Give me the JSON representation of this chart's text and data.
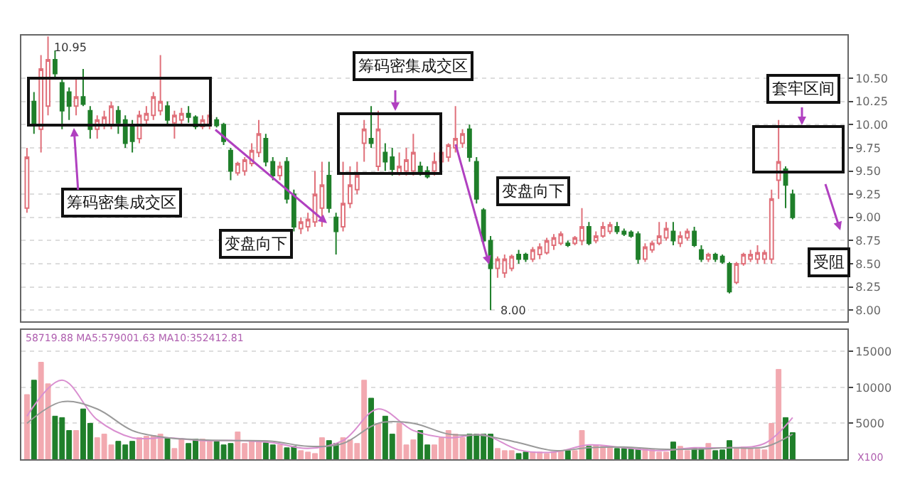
{
  "chart_data": [
    {
      "type": "candlestick",
      "categories": [
        null,
        null,
        null,
        null,
        null,
        null,
        null,
        null,
        null,
        null,
        null,
        null,
        null,
        null,
        null,
        null,
        null,
        null,
        null,
        null,
        null,
        null,
        null,
        null,
        null,
        null,
        null,
        null,
        null,
        null,
        null,
        null,
        null,
        null,
        null,
        null,
        null,
        null,
        null,
        null,
        null,
        null,
        null,
        null,
        null,
        null,
        null,
        null,
        null,
        null,
        null,
        null,
        null,
        null,
        null,
        null,
        null,
        null,
        null,
        null,
        null,
        null,
        null,
        null,
        null,
        null,
        null,
        null,
        null,
        null,
        null,
        null,
        null,
        null,
        null,
        null,
        null,
        null,
        null,
        null,
        null,
        null,
        null,
        null,
        null,
        null,
        null,
        null,
        null,
        null,
        null,
        null,
        null,
        null,
        null,
        null,
        null,
        null,
        null,
        null,
        null,
        null,
        null,
        null,
        null,
        null,
        null,
        null,
        null,
        null
      ],
      "ohlc": [
        [
          9.1,
          9.75,
          9.05,
          9.65
        ],
        [
          10.25,
          10.35,
          9.9,
          10.0
        ],
        [
          9.95,
          10.75,
          9.7,
          10.6
        ],
        [
          10.2,
          10.95,
          10.1,
          10.7
        ],
        [
          10.7,
          10.8,
          10.5,
          10.55
        ],
        [
          10.45,
          10.5,
          9.95,
          10.15
        ],
        [
          10.35,
          10.4,
          10.05,
          10.2
        ],
        [
          10.2,
          10.5,
          10.1,
          10.3
        ],
        [
          10.3,
          10.6,
          10.2,
          10.22
        ],
        [
          10.15,
          10.2,
          9.85,
          9.95
        ],
        [
          9.95,
          10.1,
          9.85,
          10.05
        ],
        [
          10.0,
          10.15,
          9.95,
          10.08
        ],
        [
          10.0,
          10.25,
          9.95,
          10.2
        ],
        [
          10.15,
          10.2,
          9.9,
          10.02
        ],
        [
          10.05,
          10.1,
          9.75,
          9.8
        ],
        [
          10.0,
          10.05,
          9.7,
          9.82
        ],
        [
          9.85,
          10.15,
          9.8,
          10.1
        ],
        [
          10.05,
          10.2,
          10.0,
          10.12
        ],
        [
          10.1,
          10.35,
          10.05,
          10.3
        ],
        [
          10.15,
          10.75,
          10.1,
          10.25
        ],
        [
          10.2,
          10.25,
          10.0,
          10.05
        ],
        [
          10.02,
          10.15,
          9.85,
          10.1
        ],
        [
          10.05,
          10.18,
          10.0,
          10.12
        ],
        [
          10.12,
          10.2,
          10.02,
          10.08
        ],
        [
          10.08,
          10.1,
          9.95,
          9.98
        ],
        [
          9.98,
          10.1,
          9.95,
          10.05
        ],
        [
          10.0,
          10.15,
          9.95,
          10.1
        ],
        [
          10.05,
          10.08,
          9.97,
          9.99
        ],
        [
          10.0,
          10.02,
          9.78,
          9.82
        ],
        [
          9.72,
          9.75,
          9.4,
          9.5
        ],
        [
          9.48,
          9.6,
          9.45,
          9.58
        ],
        [
          9.5,
          9.65,
          9.45,
          9.62
        ],
        [
          9.58,
          9.8,
          9.55,
          9.72
        ],
        [
          9.7,
          10.05,
          9.65,
          9.9
        ],
        [
          9.85,
          9.9,
          9.55,
          9.6
        ],
        [
          9.6,
          9.65,
          9.4,
          9.45
        ],
        [
          9.45,
          9.6,
          9.4,
          9.55
        ],
        [
          9.6,
          9.65,
          9.15,
          9.2
        ],
        [
          9.25,
          9.3,
          8.85,
          8.9
        ],
        [
          8.88,
          9.0,
          8.82,
          8.95
        ],
        [
          8.9,
          9.05,
          8.85,
          8.98
        ],
        [
          8.95,
          9.5,
          8.9,
          9.25
        ],
        [
          9.1,
          9.6,
          8.9,
          9.35
        ],
        [
          9.45,
          9.6,
          9.05,
          9.1
        ],
        [
          9.0,
          9.05,
          8.6,
          8.85
        ],
        [
          8.9,
          9.6,
          8.85,
          9.15
        ],
        [
          9.15,
          9.55,
          9.1,
          9.35
        ],
        [
          9.3,
          9.6,
          9.25,
          9.45
        ],
        [
          9.8,
          10.05,
          9.6,
          9.95
        ],
        [
          9.85,
          10.2,
          9.75,
          9.8
        ],
        [
          9.55,
          10.15,
          9.5,
          9.95
        ],
        [
          9.7,
          9.8,
          9.5,
          9.6
        ],
        [
          9.65,
          9.75,
          9.45,
          9.52
        ],
        [
          9.48,
          9.7,
          9.45,
          9.55
        ],
        [
          9.5,
          9.75,
          9.45,
          9.62
        ],
        [
          9.5,
          9.9,
          9.45,
          9.7
        ],
        [
          9.55,
          9.6,
          9.45,
          9.48
        ],
        [
          9.5,
          9.55,
          9.42,
          9.44
        ],
        [
          9.5,
          9.7,
          9.45,
          9.6
        ],
        [
          9.6,
          9.75,
          9.55,
          9.7
        ],
        [
          9.65,
          9.8,
          9.6,
          9.78
        ],
        [
          9.75,
          10.2,
          9.7,
          9.85
        ],
        [
          9.8,
          9.95,
          9.75,
          9.9
        ],
        [
          9.95,
          10.0,
          9.6,
          9.65
        ],
        [
          9.6,
          9.65,
          9.15,
          9.2
        ],
        [
          9.08,
          9.1,
          8.7,
          8.75
        ],
        [
          8.75,
          8.8,
          8.0,
          8.45
        ],
        [
          8.45,
          8.58,
          8.35,
          8.55
        ],
        [
          8.4,
          8.6,
          8.35,
          8.55
        ],
        [
          8.45,
          8.6,
          8.42,
          8.58
        ],
        [
          8.6,
          8.65,
          8.5,
          8.55
        ],
        [
          8.6,
          8.62,
          8.52,
          8.55
        ],
        [
          8.55,
          8.68,
          8.52,
          8.65
        ],
        [
          8.6,
          8.72,
          8.55,
          8.68
        ],
        [
          8.62,
          8.78,
          8.6,
          8.75
        ],
        [
          8.7,
          8.82,
          8.65,
          8.78
        ],
        [
          8.72,
          8.85,
          8.7,
          8.82
        ],
        [
          8.72,
          8.75,
          8.68,
          8.7
        ],
        [
          8.72,
          8.8,
          8.7,
          8.78
        ],
        [
          8.75,
          9.1,
          8.7,
          8.9
        ],
        [
          8.9,
          8.95,
          8.7,
          8.72
        ],
        [
          8.75,
          8.85,
          8.72,
          8.8
        ],
        [
          8.8,
          8.95,
          8.78,
          8.9
        ],
        [
          8.85,
          8.95,
          8.82,
          8.92
        ],
        [
          8.9,
          8.95,
          8.82,
          8.85
        ],
        [
          8.85,
          8.88,
          8.8,
          8.82
        ],
        [
          8.84,
          8.86,
          8.78,
          8.8
        ],
        [
          8.82,
          8.85,
          8.5,
          8.55
        ],
        [
          8.55,
          8.72,
          8.52,
          8.68
        ],
        [
          8.65,
          8.75,
          8.62,
          8.72
        ],
        [
          8.72,
          8.95,
          8.7,
          8.8
        ],
        [
          8.78,
          8.95,
          8.75,
          8.88
        ],
        [
          8.85,
          8.95,
          8.7,
          8.75
        ],
        [
          8.72,
          8.85,
          8.68,
          8.8
        ],
        [
          8.78,
          8.88,
          8.75,
          8.85
        ],
        [
          8.85,
          8.9,
          8.68,
          8.7
        ],
        [
          8.65,
          8.7,
          8.52,
          8.55
        ],
        [
          8.55,
          8.62,
          8.52,
          8.6
        ],
        [
          8.6,
          8.62,
          8.52,
          8.55
        ],
        [
          8.58,
          8.6,
          8.5,
          8.52
        ],
        [
          8.5,
          8.52,
          8.18,
          8.2
        ],
        [
          8.3,
          8.52,
          8.28,
          8.5
        ],
        [
          8.5,
          8.62,
          8.48,
          8.6
        ],
        [
          8.55,
          8.65,
          8.52,
          8.6
        ],
        [
          8.55,
          8.7,
          8.5,
          8.62
        ],
        [
          8.55,
          8.65,
          8.5,
          8.62
        ],
        [
          8.55,
          9.3,
          8.5,
          9.2
        ],
        [
          9.4,
          10.05,
          9.2,
          9.6
        ],
        [
          9.52,
          9.55,
          9.1,
          9.35
        ],
        [
          9.25,
          9.3,
          8.98,
          9.0
        ]
      ],
      "colors": [
        "#e0707a",
        "#1f7f2a",
        "#e0707a",
        "#e0707a",
        "#1f7f2a",
        "#1f7f2a",
        "#1f7f2a",
        "#e0707a",
        "#1f7f2a",
        "#1f7f2a",
        "#e0707a",
        "#e0707a",
        "#e0707a",
        "#1f7f2a",
        "#1f7f2a",
        "#1f7f2a",
        "#e0707a",
        "#e0707a",
        "#e0707a",
        "#e0707a",
        "#1f7f2a",
        "#e0707a",
        "#e0707a",
        "#1f7f2a",
        "#1f7f2a",
        "#e0707a",
        "#e0707a",
        "#1f7f2a",
        "#1f7f2a",
        "#1f7f2a",
        "#e0707a",
        "#e0707a",
        "#e0707a",
        "#e0707a",
        "#1f7f2a",
        "#1f7f2a",
        "#e0707a",
        "#1f7f2a",
        "#1f7f2a",
        "#e0707a",
        "#e0707a",
        "#e0707a",
        "#e0707a",
        "#1f7f2a",
        "#1f7f2a",
        "#e0707a",
        "#e0707a",
        "#e0707a",
        "#e0707a",
        "#1f7f2a",
        "#e0707a",
        "#1f7f2a",
        "#1f7f2a",
        "#e0707a",
        "#e0707a",
        "#e0707a",
        "#1f7f2a",
        "#1f7f2a",
        "#e0707a",
        "#e0707a",
        "#e0707a",
        "#e0707a",
        "#e0707a",
        "#1f7f2a",
        "#1f7f2a",
        "#1f7f2a",
        "#1f7f2a",
        "#e0707a",
        "#e0707a",
        "#e0707a",
        "#1f7f2a",
        "#1f7f2a",
        "#e0707a",
        "#e0707a",
        "#e0707a",
        "#e0707a",
        "#e0707a",
        "#1f7f2a",
        "#e0707a",
        "#e0707a",
        "#1f7f2a",
        "#e0707a",
        "#e0707a",
        "#e0707a",
        "#1f7f2a",
        "#1f7f2a",
        "#1f7f2a",
        "#1f7f2a",
        "#e0707a",
        "#e0707a",
        "#e0707a",
        "#e0707a",
        "#1f7f2a",
        "#e0707a",
        "#e0707a",
        "#1f7f2a",
        "#1f7f2a",
        "#e0707a",
        "#1f7f2a",
        "#1f7f2a",
        "#1f7f2a",
        "#e0707a",
        "#e0707a",
        "#e0707a",
        "#e0707a",
        "#e0707a",
        "#e0707a",
        "#e0707a",
        "#1f7f2a",
        "#1f7f2a"
      ],
      "ylim": [
        7.88,
        10.96
      ],
      "yticks": [
        {
          "value": 8.0,
          "label": "8.00"
        },
        8.25,
        {
          "value": 8.5,
          "label": "8.50"
        },
        8.75,
        {
          "value": 9.0,
          "label": "9.00"
        },
        9.25,
        {
          "value": 9.5,
          "label": "9.50"
        },
        9.75,
        {
          "value": 10.0,
          "label": "10.00"
        },
        10.25,
        {
          "value": 10.5,
          "label": "10.50"
        }
      ],
      "grid": "y",
      "tick_labels": "y",
      "annotations": [
        "10.95",
        "筹码密集成交区",
        "变盘向下",
        "筹码密集成交区",
        "变盘向下",
        {
          "text": "8.00",
          "y": 8.0
        },
        "套牢区间",
        "受阻"
      ]
    },
    {
      "type": "bar",
      "categories": [
        null,
        null,
        null,
        null,
        null,
        null,
        null,
        null,
        null,
        null,
        null,
        null,
        null,
        null,
        null,
        null,
        null,
        null,
        null,
        null,
        null,
        null,
        null,
        null,
        null,
        null,
        null,
        null,
        null,
        null,
        null,
        null,
        null,
        null,
        null,
        null,
        null,
        null,
        null,
        null,
        null,
        null,
        null,
        null,
        null,
        null,
        null,
        null,
        null,
        null,
        null,
        null,
        null,
        null,
        null,
        null,
        null,
        null,
        null,
        null,
        null,
        null,
        null,
        null,
        null,
        null,
        null,
        null,
        null,
        null,
        null,
        null,
        null,
        null,
        null,
        null,
        null,
        null,
        null,
        null,
        null,
        null,
        null,
        null,
        null,
        null,
        null,
        null,
        null,
        null,
        null,
        null,
        null,
        null,
        null,
        null,
        null,
        null,
        null,
        null,
        null,
        null,
        null,
        null,
        null,
        null,
        null,
        null,
        null,
        null
      ],
      "series": [
        {
          "type": "bar",
          "values": [
            9000,
            11000,
            13500,
            10500,
            6000,
            5800,
            4000,
            4000,
            7000,
            5000,
            3000,
            3500,
            2000,
            2500,
            2000,
            2500,
            3000,
            3200,
            3300,
            3500,
            3000,
            1500,
            2800,
            2200,
            2800,
            2800,
            2500,
            2500,
            2000,
            2200,
            3800,
            2200,
            2500,
            2400,
            2300,
            2000,
            2000,
            1600,
            1800,
            1200,
            1000,
            800,
            3000,
            2600,
            2200,
            3000,
            2700,
            2200,
            11000,
            8500,
            5000,
            6000,
            3500,
            5000,
            2000,
            2700,
            4000,
            2000,
            2000,
            3000,
            4000,
            3500,
            3000,
            3500,
            3500,
            3500,
            3500,
            1500,
            1200,
            1200,
            800,
            1000,
            1000,
            1000,
            800,
            1000,
            1200,
            1200,
            1200,
            4000,
            1800,
            2000,
            1800,
            1700,
            1500,
            1500,
            1500,
            1400,
            1500,
            1300,
            1000,
            1000,
            2400,
            1800,
            1200,
            1600,
            1500,
            2200,
            1200,
            1300,
            2600,
            1600,
            1700,
            1500,
            1400,
            1300,
            5000,
            12500,
            5800,
            3700
          ],
          "colors": [
            "#f2a9b0",
            "#1f7f2a",
            "#f2a9b0",
            "#f2a9b0",
            "#1f7f2a",
            "#1f7f2a",
            "#1f7f2a",
            "#f2a9b0",
            "#1f7f2a",
            "#1f7f2a",
            "#f2a9b0",
            "#f2a9b0",
            "#f2a9b0",
            "#1f7f2a",
            "#1f7f2a",
            "#1f7f2a",
            "#f2a9b0",
            "#f2a9b0",
            "#f2a9b0",
            "#f2a9b0",
            "#1f7f2a",
            "#f2a9b0",
            "#f2a9b0",
            "#1f7f2a",
            "#1f7f2a",
            "#f2a9b0",
            "#f2a9b0",
            "#1f7f2a",
            "#1f7f2a",
            "#1f7f2a",
            "#f2a9b0",
            "#f2a9b0",
            "#f2a9b0",
            "#f2a9b0",
            "#1f7f2a",
            "#1f7f2a",
            "#f2a9b0",
            "#1f7f2a",
            "#1f7f2a",
            "#f2a9b0",
            "#f2a9b0",
            "#f2a9b0",
            "#f2a9b0",
            "#1f7f2a",
            "#1f7f2a",
            "#f2a9b0",
            "#f2a9b0",
            "#f2a9b0",
            "#f2a9b0",
            "#1f7f2a",
            "#f2a9b0",
            "#1f7f2a",
            "#1f7f2a",
            "#f2a9b0",
            "#f2a9b0",
            "#f2a9b0",
            "#1f7f2a",
            "#1f7f2a",
            "#f2a9b0",
            "#f2a9b0",
            "#f2a9b0",
            "#f2a9b0",
            "#f2a9b0",
            "#1f7f2a",
            "#1f7f2a",
            "#1f7f2a",
            "#1f7f2a",
            "#f2a9b0",
            "#f2a9b0",
            "#f2a9b0",
            "#1f7f2a",
            "#1f7f2a",
            "#f2a9b0",
            "#f2a9b0",
            "#f2a9b0",
            "#f2a9b0",
            "#f2a9b0",
            "#1f7f2a",
            "#f2a9b0",
            "#f2a9b0",
            "#1f7f2a",
            "#f2a9b0",
            "#f2a9b0",
            "#f2a9b0",
            "#1f7f2a",
            "#1f7f2a",
            "#1f7f2a",
            "#1f7f2a",
            "#f2a9b0",
            "#f2a9b0",
            "#f2a9b0",
            "#f2a9b0",
            "#1f7f2a",
            "#f2a9b0",
            "#f2a9b0",
            "#1f7f2a",
            "#1f7f2a",
            "#f2a9b0",
            "#1f7f2a",
            "#1f7f2a",
            "#1f7f2a",
            "#f2a9b0",
            "#f2a9b0",
            "#f2a9b0",
            "#f2a9b0",
            "#f2a9b0",
            "#f2a9b0",
            "#f2a9b0",
            "#1f7f2a",
            "#1f7f2a"
          ]
        },
        {
          "type": "line",
          "color": "#d98fd0",
          "values": [
            6000,
            null,
            null,
            null,
            null,
            11000,
            null,
            null,
            null,
            null,
            5500,
            null,
            null,
            null,
            null,
            3000,
            null,
            null,
            null,
            null,
            3000,
            null,
            null,
            null,
            null,
            2600,
            null,
            null,
            null,
            null,
            2600,
            null,
            null,
            null,
            null,
            2300,
            null,
            null,
            null,
            null,
            1500,
            null,
            null,
            null,
            null,
            2600,
            null,
            null,
            null,
            null,
            7000,
            null,
            null,
            null,
            null,
            4000,
            null,
            null,
            null,
            null,
            3000,
            null,
            null,
            null,
            null,
            3400,
            null,
            null,
            null,
            null,
            1300,
            null,
            null,
            null,
            null,
            1000,
            null,
            null,
            null,
            null,
            2000,
            null,
            null,
            null,
            null,
            1600,
            null,
            null,
            null,
            null,
            1200,
            null,
            null,
            null,
            null,
            1600,
            null,
            null,
            null,
            null,
            1600,
            null,
            null,
            null,
            null,
            2200,
            null,
            null,
            null,
            5800
          ]
        },
        {
          "type": "line",
          "color": "#9a9a9a",
          "values": [
            5000,
            null,
            null,
            null,
            null,
            8000,
            null,
            null,
            null,
            null,
            7000,
            null,
            null,
            null,
            null,
            4000,
            null,
            null,
            null,
            null,
            3000,
            null,
            null,
            null,
            null,
            2700,
            null,
            null,
            null,
            null,
            2600,
            null,
            null,
            null,
            null,
            2500,
            null,
            null,
            null,
            null,
            1800,
            null,
            null,
            null,
            null,
            2200,
            null,
            null,
            null,
            null,
            5000,
            null,
            null,
            null,
            null,
            5000,
            null,
            null,
            null,
            null,
            3500,
            null,
            null,
            null,
            null,
            3300,
            null,
            null,
            null,
            null,
            2300,
            null,
            null,
            null,
            null,
            1200,
            null,
            null,
            null,
            null,
            1600,
            null,
            null,
            null,
            null,
            1700,
            null,
            null,
            null,
            null,
            1400,
            null,
            null,
            null,
            null,
            1400,
            null,
            null,
            null,
            null,
            1600,
            null,
            null,
            null,
            null,
            1700,
            null,
            null,
            null,
            3500
          ]
        }
      ],
      "ylim": [
        0,
        18000
      ],
      "yticks": [
        5000,
        10000,
        15000
      ],
      "grid": "y",
      "tick_labels": "y",
      "annotations": [
        "58719.88 MA5:579001.63 MA10:352412.81",
        "X100"
      ]
    }
  ]
}
